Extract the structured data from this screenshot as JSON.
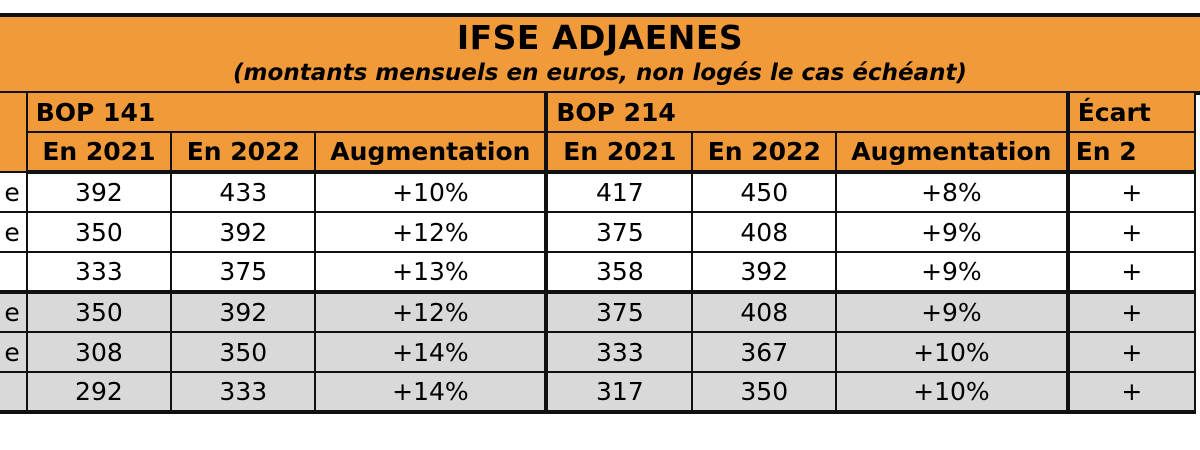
{
  "title": "IFSE ADJAENES",
  "subtitle": "(montants mensuels en euros, non logés le cas échéant)",
  "groups": [
    {
      "label": "BOP 141"
    },
    {
      "label": "BOP 214"
    },
    {
      "label": "Écart"
    }
  ],
  "subheaders": [
    "En 2021",
    "En 2022",
    "Augmentation",
    "En 2021",
    "En 2022",
    "Augmentation",
    "En 2"
  ],
  "rows": [
    {
      "label": "e",
      "cells": [
        "392",
        "433",
        "+10%",
        "417",
        "450",
        "+8%",
        "+"
      ]
    },
    {
      "label": "e",
      "cells": [
        "350",
        "392",
        "+12%",
        "375",
        "408",
        "+9%",
        "+"
      ]
    },
    {
      "label": "",
      "cells": [
        "333",
        "375",
        "+13%",
        "358",
        "392",
        "+9%",
        "+"
      ]
    },
    {
      "label": "e",
      "cells": [
        "350",
        "392",
        "+12%",
        "375",
        "408",
        "+9%",
        "+"
      ]
    },
    {
      "label": "e",
      "cells": [
        "308",
        "350",
        "+14%",
        "333",
        "367",
        "+10%",
        "+"
      ]
    },
    {
      "label": "",
      "cells": [
        "292",
        "333",
        "+14%",
        "317",
        "350",
        "+10%",
        "+"
      ]
    }
  ]
}
